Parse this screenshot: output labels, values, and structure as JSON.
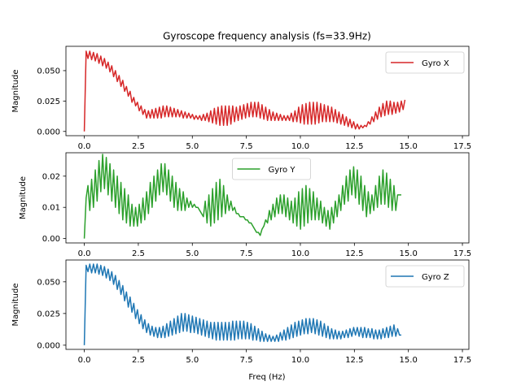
{
  "chart_data": {
    "type": "line",
    "title": "Gyroscope frequency analysis (fs=33.9Hz)",
    "xlabel": "Freq (Hz)",
    "panels": [
      {
        "ylabel": "Magnitude",
        "ylim": [
          -0.0035,
          0.07
        ],
        "yticks": [
          0.0,
          0.025,
          0.05
        ],
        "ytick_labels": [
          "0.000",
          "0.025",
          "0.050"
        ],
        "xticks": [
          0,
          2.5,
          5,
          7.5,
          10,
          12.5,
          15,
          17.5
        ],
        "xtick_labels": [
          "0.0",
          "2.5",
          "5.0",
          "7.5",
          "10.0",
          "12.5",
          "15.0",
          "17.5"
        ],
        "xlim": [
          -0.85,
          17.8
        ],
        "legend_position": "upper-right",
        "series": [
          {
            "name": "Gyro X",
            "color": "#d62728",
            "freq_step": 0.0848,
            "values": [
              0.0,
              0.066,
              0.06,
              0.066,
              0.059,
              0.065,
              0.058,
              0.064,
              0.056,
              0.062,
              0.054,
              0.06,
              0.052,
              0.057,
              0.049,
              0.054,
              0.045,
              0.05,
              0.041,
              0.046,
              0.037,
              0.042,
              0.033,
              0.037,
              0.029,
              0.033,
              0.024,
              0.028,
              0.021,
              0.024,
              0.017,
              0.021,
              0.014,
              0.018,
              0.011,
              0.017,
              0.011,
              0.018,
              0.011,
              0.019,
              0.011,
              0.02,
              0.011,
              0.021,
              0.012,
              0.021,
              0.012,
              0.02,
              0.012,
              0.019,
              0.012,
              0.018,
              0.012,
              0.017,
              0.011,
              0.016,
              0.011,
              0.015,
              0.011,
              0.014,
              0.01,
              0.013,
              0.01,
              0.013,
              0.009,
              0.014,
              0.009,
              0.015,
              0.008,
              0.017,
              0.007,
              0.019,
              0.006,
              0.02,
              0.005,
              0.021,
              0.005,
              0.021,
              0.005,
              0.021,
              0.006,
              0.021,
              0.008,
              0.02,
              0.009,
              0.021,
              0.01,
              0.022,
              0.011,
              0.023,
              0.012,
              0.024,
              0.012,
              0.024,
              0.012,
              0.024,
              0.011,
              0.022,
              0.01,
              0.02,
              0.009,
              0.018,
              0.009,
              0.016,
              0.009,
              0.015,
              0.009,
              0.014,
              0.009,
              0.013,
              0.009,
              0.013,
              0.009,
              0.015,
              0.008,
              0.017,
              0.008,
              0.02,
              0.007,
              0.022,
              0.006,
              0.023,
              0.006,
              0.024,
              0.006,
              0.024,
              0.006,
              0.024,
              0.007,
              0.023,
              0.008,
              0.022,
              0.008,
              0.021,
              0.008,
              0.02,
              0.008,
              0.018,
              0.007,
              0.016,
              0.006,
              0.014,
              0.005,
              0.012,
              0.004,
              0.01,
              0.003,
              0.008,
              0.002,
              0.006,
              0.002,
              0.005,
              0.003,
              0.005,
              0.004,
              0.008,
              0.006,
              0.012,
              0.008,
              0.016,
              0.01,
              0.02,
              0.012,
              0.023,
              0.013,
              0.025,
              0.014,
              0.025,
              0.014,
              0.024,
              0.015,
              0.024,
              0.016,
              0.025,
              0.018,
              0.026
            ]
          }
        ]
      },
      {
        "ylabel": "Magnitude",
        "ylim": [
          -0.0014,
          0.0275
        ],
        "yticks": [
          0.0,
          0.01,
          0.02
        ],
        "ytick_labels": [
          "0.00",
          "0.01",
          "0.02"
        ],
        "xticks": [
          0,
          2.5,
          5,
          7.5,
          10,
          12.5,
          15,
          17.5
        ],
        "xtick_labels": [
          "0.0",
          "2.5",
          "5.0",
          "7.5",
          "10.0",
          "12.5",
          "15.0",
          "17.5"
        ],
        "xlim": [
          -0.85,
          17.8
        ],
        "legend_position": "upper-center",
        "series": [
          {
            "name": "Gyro Y",
            "color": "#2ca02c",
            "freq_step": 0.0848,
            "values": [
              0.0,
              0.013,
              0.017,
              0.009,
              0.019,
              0.01,
              0.022,
              0.012,
              0.025,
              0.015,
              0.027,
              0.016,
              0.026,
              0.014,
              0.024,
              0.012,
              0.022,
              0.01,
              0.02,
              0.008,
              0.018,
              0.006,
              0.016,
              0.005,
              0.014,
              0.004,
              0.011,
              0.004,
              0.01,
              0.004,
              0.011,
              0.005,
              0.013,
              0.006,
              0.015,
              0.008,
              0.018,
              0.01,
              0.02,
              0.012,
              0.022,
              0.014,
              0.024,
              0.015,
              0.024,
              0.014,
              0.022,
              0.012,
              0.02,
              0.01,
              0.018,
              0.009,
              0.016,
              0.009,
              0.015,
              0.009,
              0.013,
              0.01,
              0.012,
              0.01,
              0.011,
              0.01,
              0.01,
              0.009,
              0.008,
              0.007,
              0.012,
              0.005,
              0.014,
              0.004,
              0.016,
              0.005,
              0.018,
              0.006,
              0.019,
              0.007,
              0.017,
              0.008,
              0.014,
              0.009,
              0.012,
              0.009,
              0.01,
              0.008,
              0.008,
              0.007,
              0.007,
              0.007,
              0.006,
              0.006,
              0.005,
              0.005,
              0.004,
              0.003,
              0.002,
              0.002,
              0.001,
              0.003,
              0.004,
              0.006,
              0.005,
              0.009,
              0.006,
              0.011,
              0.007,
              0.013,
              0.008,
              0.014,
              0.008,
              0.014,
              0.007,
              0.013,
              0.006,
              0.012,
              0.005,
              0.013,
              0.004,
              0.015,
              0.003,
              0.016,
              0.004,
              0.017,
              0.005,
              0.016,
              0.006,
              0.015,
              0.006,
              0.013,
              0.006,
              0.012,
              0.005,
              0.01,
              0.004,
              0.009,
              0.003,
              0.01,
              0.005,
              0.012,
              0.007,
              0.014,
              0.009,
              0.017,
              0.011,
              0.02,
              0.012,
              0.022,
              0.014,
              0.023,
              0.013,
              0.022,
              0.011,
              0.02,
              0.009,
              0.017,
              0.007,
              0.015,
              0.008,
              0.014,
              0.009,
              0.017,
              0.01,
              0.02,
              0.011,
              0.022,
              0.011,
              0.021,
              0.01,
              0.019,
              0.009,
              0.017,
              0.009,
              0.014,
              0.014,
              0.014
            ]
          }
        ]
      },
      {
        "ylabel": "Magnitude",
        "ylim": [
          -0.0033,
          0.0672
        ],
        "yticks": [
          0.0,
          0.025,
          0.05
        ],
        "ytick_labels": [
          "0.000",
          "0.025",
          "0.050"
        ],
        "xticks": [
          0,
          2.5,
          5,
          7.5,
          10,
          12.5,
          15,
          17.5
        ],
        "xtick_labels": [
          "0.0",
          "2.5",
          "5.0",
          "7.5",
          "10.0",
          "12.5",
          "15.0",
          "17.5"
        ],
        "xlim": [
          -0.85,
          17.8
        ],
        "legend_position": "upper-right",
        "series": [
          {
            "name": "Gyro Z",
            "color": "#1f77b4",
            "freq_step": 0.0848,
            "values": [
              0.0,
              0.063,
              0.058,
              0.064,
              0.057,
              0.064,
              0.057,
              0.064,
              0.056,
              0.063,
              0.055,
              0.062,
              0.053,
              0.06,
              0.051,
              0.058,
              0.048,
              0.055,
              0.044,
              0.051,
              0.04,
              0.047,
              0.035,
              0.042,
              0.03,
              0.038,
              0.026,
              0.033,
              0.021,
              0.028,
              0.017,
              0.024,
              0.013,
              0.02,
              0.01,
              0.017,
              0.008,
              0.015,
              0.007,
              0.014,
              0.006,
              0.014,
              0.006,
              0.015,
              0.006,
              0.017,
              0.007,
              0.019,
              0.008,
              0.021,
              0.009,
              0.023,
              0.01,
              0.025,
              0.011,
              0.025,
              0.011,
              0.024,
              0.01,
              0.023,
              0.01,
              0.022,
              0.009,
              0.021,
              0.008,
              0.02,
              0.007,
              0.019,
              0.006,
              0.018,
              0.005,
              0.018,
              0.004,
              0.018,
              0.004,
              0.018,
              0.004,
              0.018,
              0.004,
              0.018,
              0.004,
              0.019,
              0.004,
              0.019,
              0.005,
              0.019,
              0.005,
              0.019,
              0.005,
              0.018,
              0.005,
              0.017,
              0.004,
              0.015,
              0.004,
              0.013,
              0.003,
              0.011,
              0.003,
              0.009,
              0.003,
              0.008,
              0.003,
              0.007,
              0.003,
              0.008,
              0.003,
              0.01,
              0.004,
              0.012,
              0.004,
              0.014,
              0.005,
              0.016,
              0.006,
              0.018,
              0.007,
              0.019,
              0.008,
              0.02,
              0.009,
              0.021,
              0.009,
              0.021,
              0.01,
              0.021,
              0.009,
              0.02,
              0.008,
              0.019,
              0.007,
              0.017,
              0.006,
              0.015,
              0.005,
              0.013,
              0.005,
              0.012,
              0.005,
              0.011,
              0.005,
              0.011,
              0.006,
              0.012,
              0.006,
              0.013,
              0.007,
              0.014,
              0.008,
              0.014,
              0.007,
              0.014,
              0.006,
              0.014,
              0.006,
              0.013,
              0.006,
              0.013,
              0.005,
              0.012,
              0.005,
              0.012,
              0.005,
              0.013,
              0.006,
              0.014,
              0.006,
              0.015,
              0.007,
              0.016,
              0.007,
              0.013,
              0.008,
              0.008
            ]
          }
        ]
      }
    ]
  }
}
